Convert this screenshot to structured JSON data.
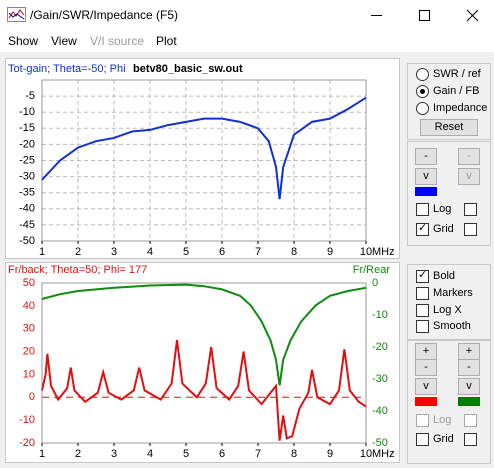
{
  "window": {
    "title": "/Gain/SWR/Impedance (F5)"
  },
  "menu": [
    "Show",
    "View",
    "V/I source",
    "Plot"
  ],
  "file_name": "betv80_basic_sw.out",
  "chart_data": [
    {
      "type": "line",
      "title": "Tot-gain; Theta=-50; Phi",
      "xlabel": "MHz",
      "xlim": [
        1,
        10
      ],
      "xticks": [
        1,
        2,
        3,
        4,
        5,
        6,
        7,
        8,
        9,
        10
      ],
      "ylim": [
        -50,
        0
      ],
      "yticks": [
        -50,
        -45,
        -40,
        -35,
        -30,
        -25,
        -20,
        -15,
        -10,
        -5
      ],
      "grid": true,
      "series": [
        {
          "color": "#1030d0",
          "x": [
            1,
            1.5,
            2,
            2.5,
            3,
            3.5,
            4,
            4.5,
            5,
            5.5,
            6,
            6.5,
            7,
            7.3,
            7.5,
            7.6,
            7.7,
            8,
            8.5,
            9,
            9.5,
            10
          ],
          "values": [
            -31,
            -25,
            -21,
            -19,
            -18,
            -16,
            -15.5,
            -14,
            -13,
            -12,
            -12,
            -13,
            -15,
            -19,
            -27,
            -37,
            -27,
            -17,
            -13,
            -12,
            -9,
            -5.5
          ]
        }
      ]
    },
    {
      "type": "line",
      "title": "Fr/back; Theta=50; Phi= 177",
      "xlabel": "MHz",
      "xlim": [
        1,
        10
      ],
      "xticks": [
        1,
        2,
        3,
        4,
        5,
        6,
        7,
        8,
        9,
        10
      ],
      "ylim": [
        -20,
        50
      ],
      "yticks": [
        -20,
        -10,
        0,
        10,
        20,
        30,
        40,
        50
      ],
      "y2lim": [
        -50,
        0
      ],
      "y2ticks": [
        -50,
        -40,
        -30,
        -20,
        -10,
        0
      ],
      "grid": false,
      "series": [
        {
          "color": "#e01010",
          "x": [
            1,
            1.1,
            1.15,
            1.25,
            1.45,
            1.7,
            1.8,
            1.9,
            2.2,
            2.55,
            2.7,
            2.85,
            3.2,
            3.55,
            3.7,
            3.85,
            4.3,
            4.6,
            4.75,
            4.9,
            5.3,
            5.55,
            5.7,
            5.85,
            6.2,
            6.45,
            6.6,
            6.75,
            7.1,
            7.4,
            7.5,
            7.6,
            7.7,
            7.8,
            7.95,
            8.15,
            8.4,
            8.5,
            8.65,
            9,
            9.25,
            9.4,
            9.55,
            9.8,
            10
          ],
          "values": [
            3,
            10,
            19,
            5,
            -1,
            4,
            13,
            3,
            -2,
            2,
            11,
            2,
            -1,
            3,
            13,
            3,
            -1,
            6,
            25,
            6,
            0,
            6,
            22,
            4,
            -1,
            5,
            20,
            3,
            -3,
            3,
            5,
            -19,
            -8,
            -18,
            -17,
            -5,
            2,
            12,
            0,
            -3,
            3,
            21,
            3,
            -2,
            -4
          ]
        },
        {
          "name": "Fr/Rear",
          "color": "#108a10",
          "axis": "y2",
          "x": [
            1,
            1.5,
            2,
            3,
            4,
            5,
            5.5,
            6,
            6.5,
            6.8,
            7.1,
            7.35,
            7.5,
            7.6,
            7.7,
            7.9,
            8.2,
            8.6,
            9,
            9.5,
            10
          ],
          "values": [
            -5,
            -3.5,
            -2.5,
            -1.5,
            -0.8,
            -0.5,
            -1,
            -2,
            -4,
            -7,
            -12,
            -18,
            -24,
            -32,
            -24,
            -18,
            -12,
            -7,
            -4,
            -2.5,
            -1.5
          ]
        }
      ]
    }
  ],
  "controls": {
    "plot_type": {
      "options": [
        "SWR / ref",
        "Gain / FB",
        "Impedance"
      ],
      "selected": 1
    },
    "reset": "Reset",
    "top": {
      "buttons": [
        "-",
        "-",
        "v",
        "v"
      ],
      "color": "#0000ff",
      "checks": [
        {
          "label": "Log",
          "checked": false
        },
        {
          "label": "Grid",
          "checked": true
        }
      ]
    },
    "options": [
      {
        "label": "Bold",
        "checked": true
      },
      {
        "label": "Markers",
        "checked": false
      },
      {
        "label": "Log X",
        "checked": false
      },
      {
        "label": "Smooth",
        "checked": false
      }
    ],
    "bottom": {
      "buttons": [
        "+",
        "+",
        "-",
        "-",
        "v",
        "v"
      ],
      "colors": [
        "#ff0000",
        "#008000"
      ],
      "checks": [
        {
          "label": "Log",
          "checked": false,
          "disabled": true
        },
        {
          "label": "Grid",
          "checked": false
        }
      ]
    }
  }
}
